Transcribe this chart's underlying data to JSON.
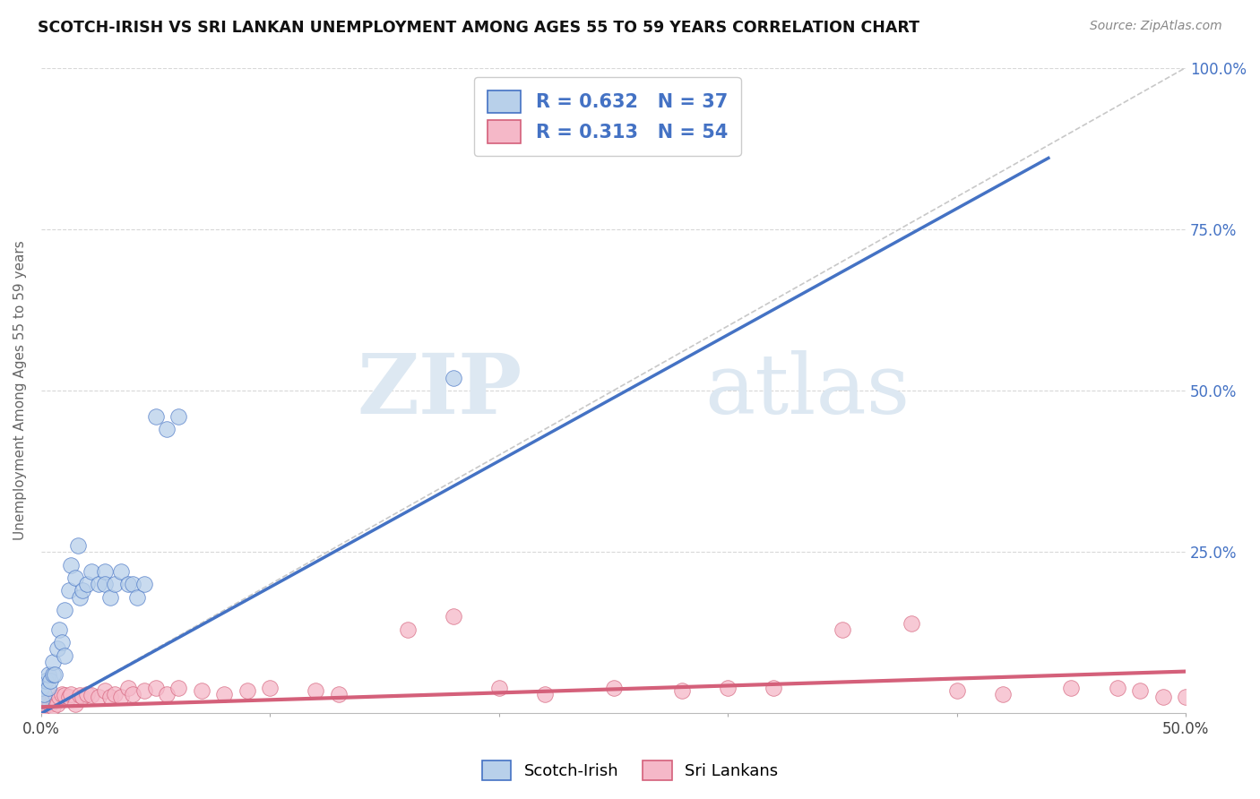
{
  "title": "SCOTCH-IRISH VS SRI LANKAN UNEMPLOYMENT AMONG AGES 55 TO 59 YEARS CORRELATION CHART",
  "source": "Source: ZipAtlas.com",
  "xlim": [
    0,
    0.5
  ],
  "ylim": [
    0,
    1.0
  ],
  "legend_r1": "R = 0.632",
  "legend_n1": "N = 37",
  "legend_r2": "R = 0.313",
  "legend_n2": "N = 54",
  "label1": "Scotch-Irish",
  "label2": "Sri Lankans",
  "color1": "#b8d0ea",
  "color2": "#f5b8c8",
  "line_color1": "#4472c4",
  "line_color2": "#d4607a",
  "ref_line_color": "#c8c8c8",
  "background": "#ffffff",
  "watermark_zip": "ZIP",
  "watermark_atlas": "atlas",
  "grid_color": "#d8d8d8",
  "ytick_color": "#4472c4",
  "ylabel_color": "#666666",
  "title_color": "#111111",
  "source_color": "#888888",
  "scotch_irish_x": [
    0.0,
    0.0,
    0.001,
    0.002,
    0.003,
    0.003,
    0.004,
    0.005,
    0.005,
    0.006,
    0.007,
    0.008,
    0.009,
    0.01,
    0.01,
    0.012,
    0.013,
    0.015,
    0.016,
    0.017,
    0.018,
    0.02,
    0.022,
    0.025,
    0.028,
    0.028,
    0.03,
    0.032,
    0.035,
    0.038,
    0.04,
    0.042,
    0.045,
    0.05,
    0.055,
    0.06,
    0.18
  ],
  "scotch_irish_y": [
    0.02,
    0.04,
    0.03,
    0.05,
    0.04,
    0.06,
    0.05,
    0.06,
    0.08,
    0.06,
    0.1,
    0.13,
    0.11,
    0.16,
    0.09,
    0.19,
    0.23,
    0.21,
    0.26,
    0.18,
    0.19,
    0.2,
    0.22,
    0.2,
    0.22,
    0.2,
    0.18,
    0.2,
    0.22,
    0.2,
    0.2,
    0.18,
    0.2,
    0.46,
    0.44,
    0.46,
    0.52
  ],
  "sri_lankan_x": [
    0.0,
    0.0,
    0.001,
    0.002,
    0.003,
    0.004,
    0.005,
    0.005,
    0.006,
    0.007,
    0.008,
    0.009,
    0.01,
    0.012,
    0.013,
    0.015,
    0.017,
    0.018,
    0.02,
    0.022,
    0.025,
    0.028,
    0.03,
    0.032,
    0.035,
    0.038,
    0.04,
    0.045,
    0.05,
    0.055,
    0.06,
    0.07,
    0.08,
    0.09,
    0.1,
    0.12,
    0.13,
    0.16,
    0.18,
    0.2,
    0.22,
    0.25,
    0.28,
    0.3,
    0.32,
    0.35,
    0.38,
    0.4,
    0.42,
    0.45,
    0.47,
    0.48,
    0.49,
    0.5
  ],
  "sri_lankan_y": [
    0.01,
    0.02,
    0.01,
    0.015,
    0.02,
    0.015,
    0.025,
    0.01,
    0.02,
    0.015,
    0.025,
    0.03,
    0.028,
    0.025,
    0.03,
    0.015,
    0.028,
    0.025,
    0.03,
    0.028,
    0.025,
    0.035,
    0.025,
    0.03,
    0.025,
    0.04,
    0.03,
    0.035,
    0.04,
    0.03,
    0.04,
    0.035,
    0.03,
    0.035,
    0.04,
    0.035,
    0.03,
    0.13,
    0.15,
    0.04,
    0.03,
    0.04,
    0.035,
    0.04,
    0.04,
    0.13,
    0.14,
    0.035,
    0.03,
    0.04,
    0.04,
    0.035,
    0.025,
    0.025
  ],
  "blue_line_x": [
    0.0,
    0.44
  ],
  "blue_line_y": [
    0.0,
    0.86
  ],
  "pink_line_x": [
    0.0,
    0.5
  ],
  "pink_line_y": [
    0.01,
    0.065
  ]
}
